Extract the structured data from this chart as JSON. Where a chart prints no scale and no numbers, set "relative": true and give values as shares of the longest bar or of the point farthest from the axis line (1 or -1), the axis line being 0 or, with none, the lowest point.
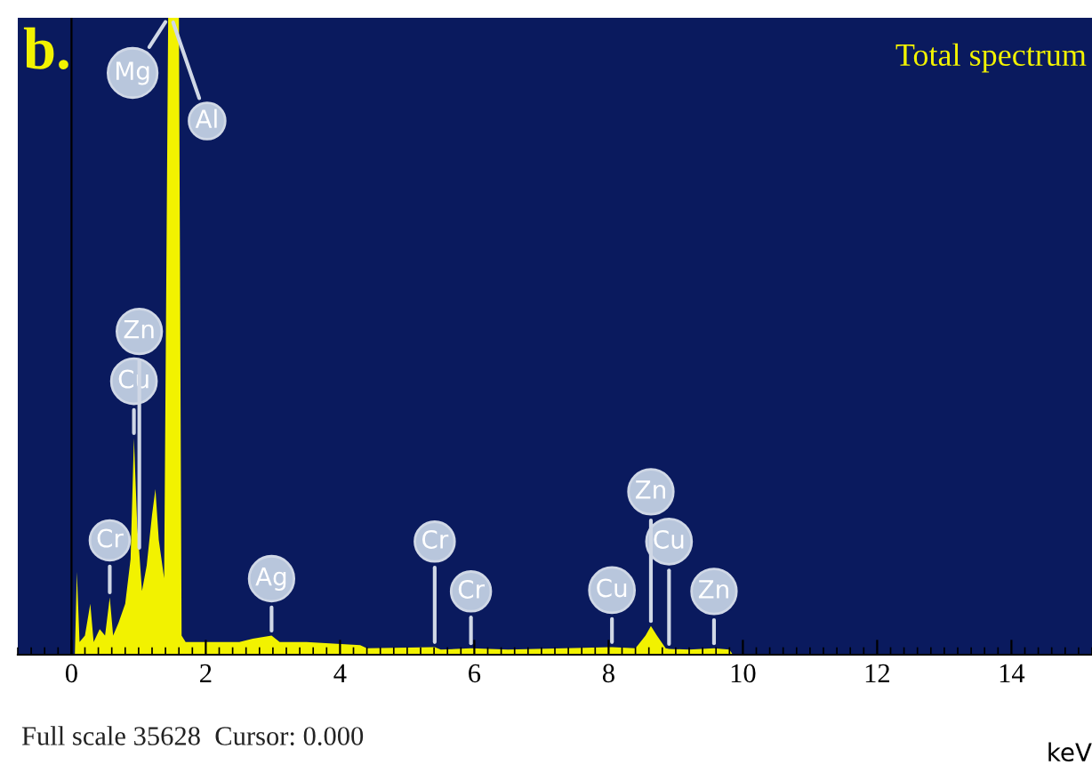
{
  "chart_data": {
    "type": "area",
    "relative": true,
    "color": "#f2f200",
    "x": [
      0.05,
      0.08,
      0.12,
      0.2,
      0.28,
      0.33,
      0.42,
      0.5,
      0.57,
      0.62,
      0.7,
      0.8,
      0.88,
      0.93,
      0.98,
      1.01,
      1.05,
      1.12,
      1.2,
      1.25,
      1.3,
      1.38,
      1.44,
      1.49,
      1.6,
      1.64,
      1.7,
      2.0,
      2.5,
      2.7,
      2.98,
      3.1,
      3.5,
      4.3,
      4.4,
      5.41,
      5.5,
      5.95,
      6.5,
      8.05,
      8.4,
      8.55,
      8.63,
      8.72,
      8.85,
      8.9,
      9.2,
      9.57,
      9.8,
      9.85
    ],
    "values": [
      0,
      0.13,
      0.02,
      0.03,
      0.08,
      0.02,
      0.04,
      0.03,
      0.09,
      0.03,
      0.05,
      0.08,
      0.15,
      0.34,
      0.2,
      0.16,
      0.1,
      0.14,
      0.22,
      0.26,
      0.18,
      0.12,
      1,
      1,
      1,
      0.03,
      0.02,
      0.02,
      0.02,
      0.025,
      0.03,
      0.02,
      0.02,
      0.015,
      0.01,
      0.012,
      0.008,
      0.01,
      0.008,
      0.012,
      0.01,
      0.03,
      0.045,
      0.03,
      0.01,
      0.009,
      0.008,
      0.01,
      0.008,
      0
    ],
    "xlim": [
      -0.8,
      15.2
    ],
    "xticks": [
      0,
      2,
      4,
      6,
      8,
      10,
      12,
      14
    ],
    "tick_labels": "x",
    "xlabel": "keV",
    "ref_lines": [
      {
        "axis": "x",
        "value": 0,
        "color": "#000000"
      }
    ],
    "annotations": [
      "b.",
      "Total spectrum",
      "Full scale 35628  Cursor: 0.000",
      {
        "text": "Mg",
        "x": 1.44,
        "y": 1
      },
      {
        "text": "Al",
        "x": 1.49,
        "y": 1
      },
      {
        "text": "Cr",
        "x": 0.57,
        "y": 0.09
      },
      {
        "text": "Cu",
        "x": 0.93,
        "y": 0.34
      },
      {
        "text": "Zn",
        "x": 1.01,
        "y": 0.16
      },
      {
        "text": "Ag",
        "x": 2.98,
        "y": 0.03
      },
      {
        "text": "Cr",
        "x": 5.95,
        "y": 0.01
      },
      {
        "text": "Cr",
        "x": 5.41,
        "y": 0.012
      },
      {
        "text": "Cu",
        "x": 8.05,
        "y": 0.012
      },
      {
        "text": "Zn",
        "x": 9.57,
        "y": 0.01
      },
      {
        "text": "Cu",
        "x": 8.9,
        "y": 0.009
      },
      {
        "text": "Zn",
        "x": 8.63,
        "y": 0.045
      }
    ]
  }
}
